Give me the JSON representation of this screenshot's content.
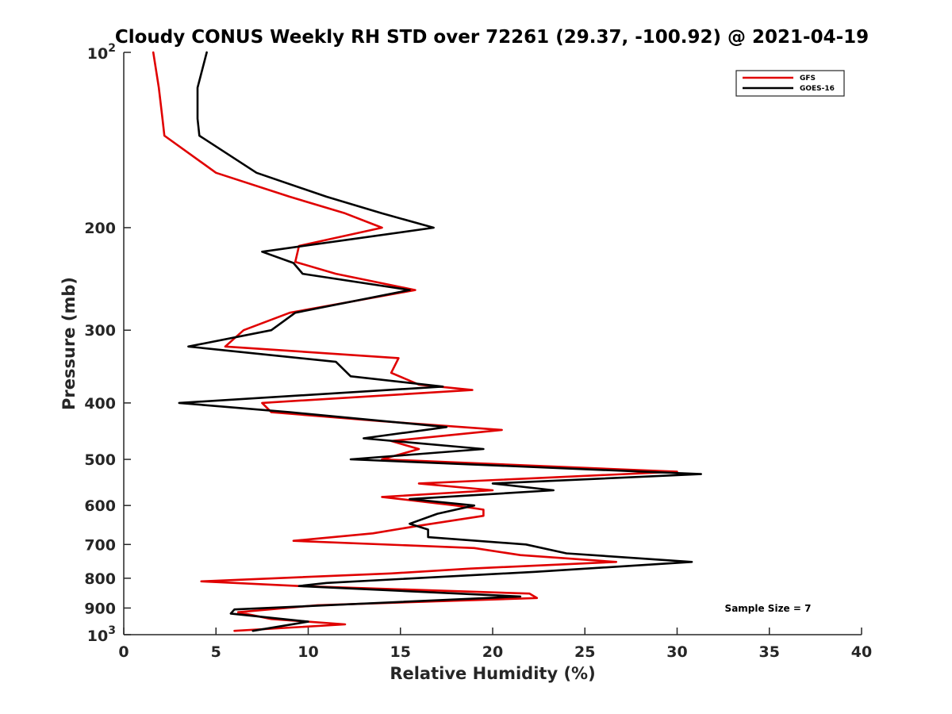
{
  "chart_data": {
    "type": "line",
    "title": "Cloudy CONUS Weekly RH STD over 72261 (29.37, -100.92) @ 2021-04-19",
    "xlabel": "Relative Humidity (%)",
    "ylabel": "Pressure (mb)",
    "xlim": [
      0,
      40
    ],
    "ylim": [
      100,
      1000
    ],
    "y_scale": "log",
    "y_reversed": true,
    "x_ticks": [
      0,
      5,
      10,
      15,
      20,
      25,
      30,
      35,
      40
    ],
    "x_tick_labels": [
      "0",
      "5",
      "10",
      "15",
      "20",
      "25",
      "30",
      "35",
      "40"
    ],
    "y_ticks": [
      200,
      300,
      400,
      500,
      600,
      700,
      800,
      900
    ],
    "y_tick_labels": [
      "200",
      "300",
      "400",
      "500",
      "600",
      "700",
      "800",
      "900"
    ],
    "y_end_labels": {
      "top_base": "10",
      "top_exp": "2",
      "bottom_base": "10",
      "bottom_exp": "3"
    },
    "grid": false,
    "legend_position": "top-right",
    "annotation": "Sample Size = 7",
    "series": [
      {
        "name": "GFS",
        "color": "#e00000",
        "points": [
          [
            1.6,
            100
          ],
          [
            1.9,
            115
          ],
          [
            2.1,
            130
          ],
          [
            2.2,
            139
          ],
          [
            5.0,
            161
          ],
          [
            9.0,
            177
          ],
          [
            12.0,
            189
          ],
          [
            14.0,
            200
          ],
          [
            9.5,
            215
          ],
          [
            9.3,
            229
          ],
          [
            11.5,
            240
          ],
          [
            15.8,
            256
          ],
          [
            9.0,
            280
          ],
          [
            6.5,
            300
          ],
          [
            5.5,
            320
          ],
          [
            14.9,
            335
          ],
          [
            14.5,
            355
          ],
          [
            16.0,
            372
          ],
          [
            18.9,
            380
          ],
          [
            7.5,
            400
          ],
          [
            8.0,
            415
          ],
          [
            14.0,
            430
          ],
          [
            20.5,
            445
          ],
          [
            14.5,
            465
          ],
          [
            16.0,
            480
          ],
          [
            14.0,
            500
          ],
          [
            30.0,
            525
          ],
          [
            16.0,
            550
          ],
          [
            20.0,
            565
          ],
          [
            14.0,
            580
          ],
          [
            18.0,
            600
          ],
          [
            19.5,
            610
          ],
          [
            19.5,
            625
          ],
          [
            16.0,
            650
          ],
          [
            13.5,
            670
          ],
          [
            9.2,
            690
          ],
          [
            19.0,
            710
          ],
          [
            21.5,
            730
          ],
          [
            26.7,
            750
          ],
          [
            18.8,
            770
          ],
          [
            14.5,
            785
          ],
          [
            4.2,
            810
          ],
          [
            9.5,
            825
          ],
          [
            22.0,
            850
          ],
          [
            22.4,
            865
          ],
          [
            10.5,
            890
          ],
          [
            6.2,
            915
          ],
          [
            8.0,
            940
          ],
          [
            12.0,
            960
          ],
          [
            6.0,
            985
          ]
        ]
      },
      {
        "name": "GOES-16",
        "color": "#000000",
        "points": [
          [
            4.5,
            100
          ],
          [
            4.0,
            115
          ],
          [
            4.0,
            130
          ],
          [
            4.1,
            139
          ],
          [
            7.2,
            161
          ],
          [
            11.0,
            177
          ],
          [
            14.0,
            189
          ],
          [
            16.8,
            200
          ],
          [
            7.5,
            220
          ],
          [
            9.2,
            230
          ],
          [
            9.7,
            240
          ],
          [
            15.5,
            256
          ],
          [
            9.3,
            280
          ],
          [
            8.0,
            300
          ],
          [
            3.5,
            320
          ],
          [
            11.5,
            340
          ],
          [
            12.3,
            360
          ],
          [
            17.3,
            375
          ],
          [
            3.0,
            400
          ],
          [
            9.0,
            415
          ],
          [
            17.5,
            440
          ],
          [
            13.0,
            460
          ],
          [
            19.5,
            480
          ],
          [
            12.3,
            500
          ],
          [
            31.3,
            530
          ],
          [
            20.0,
            550
          ],
          [
            23.3,
            565
          ],
          [
            15.5,
            585
          ],
          [
            19.0,
            600
          ],
          [
            17.0,
            620
          ],
          [
            15.5,
            645
          ],
          [
            16.5,
            660
          ],
          [
            16.5,
            680
          ],
          [
            21.8,
            700
          ],
          [
            24.0,
            725
          ],
          [
            30.8,
            750
          ],
          [
            22.3,
            780
          ],
          [
            11.0,
            815
          ],
          [
            9.5,
            825
          ],
          [
            21.5,
            860
          ],
          [
            6.0,
            905
          ],
          [
            5.8,
            920
          ],
          [
            10.0,
            950
          ],
          [
            7.0,
            985
          ]
        ]
      }
    ]
  }
}
